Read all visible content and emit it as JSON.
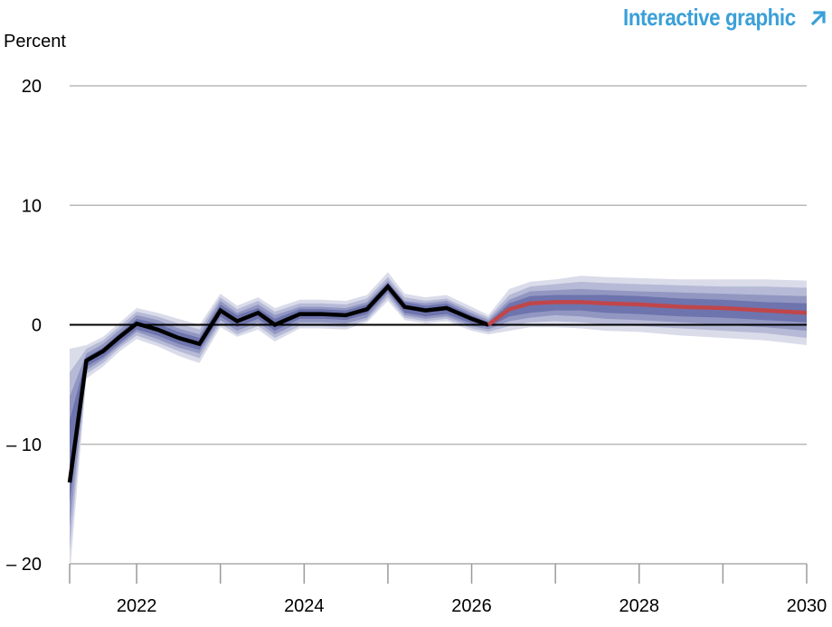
{
  "header": {
    "link_label": "Interactive graphic",
    "link_icon": "arrow-up-right-icon",
    "link_color": "#3aa0d8"
  },
  "chart_data": {
    "type": "line",
    "title": "",
    "xlabel": "",
    "ylabel": "Percent",
    "ylim": [
      -20,
      20
    ],
    "xlim": [
      2021.2,
      2030.0
    ],
    "yticks": [
      20,
      10,
      0,
      -10,
      -20
    ],
    "ytick_labels": [
      "20",
      "10",
      "0",
      "– 10",
      "– 20"
    ],
    "xticks": [
      2022,
      2024,
      2026,
      2028,
      2030
    ],
    "xtick_labels": [
      "2022",
      "2024",
      "2026",
      "2028",
      "2030"
    ],
    "grid": true,
    "zero_line": true,
    "legend": "none",
    "colors": {
      "history": "#000000",
      "forecast": "#c0464a",
      "bands": [
        "#dadcea",
        "#b6bad6",
        "#9297c2",
        "#6e74ad"
      ]
    },
    "series": [
      {
        "role": "history",
        "x": [
          2021.2,
          2021.4,
          2021.6,
          2021.8,
          2022.0,
          2022.25,
          2022.5,
          2022.75,
          2023.0,
          2023.2,
          2023.45,
          2023.65,
          2023.95,
          2024.2,
          2024.5,
          2024.75,
          2025.0,
          2025.2,
          2025.45,
          2025.7,
          2026.0,
          2026.2
        ],
        "y": [
          -13.2,
          -3.0,
          -2.2,
          -1.0,
          0.1,
          -0.4,
          -1.1,
          -1.6,
          1.2,
          0.3,
          1.0,
          0.0,
          0.9,
          0.9,
          0.8,
          1.3,
          3.2,
          1.5,
          1.2,
          1.4,
          0.5,
          0.0
        ]
      },
      {
        "role": "forecast",
        "x": [
          2026.2,
          2026.45,
          2026.7,
          2027.0,
          2027.3,
          2027.6,
          2028.0,
          2028.5,
          2029.0,
          2029.5,
          2030.0
        ],
        "y": [
          0.0,
          1.3,
          1.8,
          1.9,
          1.9,
          1.8,
          1.7,
          1.5,
          1.4,
          1.2,
          1.0
        ]
      }
    ],
    "bands": [
      {
        "x": [
          2021.2,
          2021.4,
          2021.6,
          2021.8,
          2022.0,
          2022.25,
          2022.5,
          2022.75,
          2023.0,
          2023.2,
          2023.45,
          2023.65,
          2023.95,
          2024.2,
          2024.5,
          2024.75,
          2025.0,
          2025.2,
          2025.45,
          2025.7,
          2026.0,
          2026.2,
          2026.45,
          2026.7,
          2027.0,
          2027.3,
          2027.6,
          2028.0,
          2028.5,
          2029.0,
          2029.5,
          2030.0
        ],
        "lo": [
          -21,
          -4.5,
          -3.5,
          -2.2,
          -1.2,
          -1.8,
          -2.6,
          -3.2,
          -0.2,
          -1.0,
          -0.4,
          -1.4,
          -0.3,
          -0.3,
          -0.4,
          0.2,
          2.0,
          0.4,
          0.1,
          0.3,
          -0.5,
          -0.8,
          -0.5,
          -0.2,
          -0.2,
          -0.3,
          -0.5,
          -0.6,
          -0.9,
          -1.1,
          -1.3,
          -1.7
        ],
        "hi": [
          -2.0,
          -1.7,
          -1.0,
          0.2,
          1.4,
          1.0,
          0.5,
          0.0,
          2.6,
          1.6,
          2.3,
          1.4,
          2.1,
          2.1,
          2.0,
          2.5,
          4.4,
          2.6,
          2.3,
          2.5,
          1.5,
          0.8,
          3.0,
          3.6,
          3.8,
          4.1,
          4.0,
          3.9,
          3.8,
          3.8,
          3.8,
          3.7
        ]
      },
      {
        "x": [
          2021.2,
          2021.4,
          2021.6,
          2021.8,
          2022.0,
          2022.25,
          2022.5,
          2022.75,
          2023.0,
          2023.2,
          2023.45,
          2023.65,
          2023.95,
          2024.2,
          2024.5,
          2024.75,
          2025.0,
          2025.2,
          2025.45,
          2025.7,
          2026.0,
          2026.2,
          2026.45,
          2026.7,
          2027.0,
          2027.3,
          2027.6,
          2028.0,
          2028.5,
          2029.0,
          2029.5,
          2030.0
        ],
        "lo": [
          -19,
          -4.1,
          -3.2,
          -1.9,
          -0.9,
          -1.5,
          -2.2,
          -2.8,
          0.1,
          -0.8,
          -0.1,
          -1.1,
          -0.1,
          -0.1,
          -0.2,
          0.4,
          2.3,
          0.6,
          0.3,
          0.5,
          -0.3,
          -0.6,
          -0.1,
          0.2,
          0.3,
          0.2,
          0.0,
          -0.1,
          -0.3,
          -0.5,
          -0.7,
          -1.1
        ],
        "hi": [
          -4.0,
          -2.0,
          -1.3,
          -0.1,
          1.1,
          0.7,
          0.1,
          -0.4,
          2.3,
          1.3,
          2.0,
          1.1,
          1.8,
          1.8,
          1.7,
          2.2,
          4.0,
          2.3,
          2.0,
          2.2,
          1.2,
          0.6,
          2.5,
          3.2,
          3.4,
          3.6,
          3.5,
          3.4,
          3.3,
          3.2,
          3.2,
          3.1
        ]
      },
      {
        "x": [
          2021.2,
          2021.4,
          2021.6,
          2021.8,
          2022.0,
          2022.25,
          2022.5,
          2022.75,
          2023.0,
          2023.2,
          2023.45,
          2023.65,
          2023.95,
          2024.2,
          2024.5,
          2024.75,
          2025.0,
          2025.2,
          2025.45,
          2025.7,
          2026.0,
          2026.2,
          2026.45,
          2026.7,
          2027.0,
          2027.3,
          2027.6,
          2028.0,
          2028.5,
          2029.0,
          2029.5,
          2030.0
        ],
        "lo": [
          -17,
          -3.8,
          -2.9,
          -1.7,
          -0.6,
          -1.2,
          -1.9,
          -2.4,
          0.4,
          -0.5,
          0.2,
          -0.8,
          0.2,
          0.2,
          0.1,
          0.6,
          2.6,
          0.8,
          0.5,
          0.7,
          -0.1,
          -0.4,
          0.3,
          0.6,
          0.8,
          0.7,
          0.5,
          0.4,
          0.2,
          0.0,
          -0.2,
          -0.5
        ],
        "hi": [
          -6.0,
          -2.4,
          -1.6,
          -0.4,
          0.8,
          0.4,
          -0.3,
          -0.8,
          2.0,
          1.0,
          1.7,
          0.8,
          1.5,
          1.5,
          1.4,
          1.9,
          3.7,
          2.0,
          1.8,
          2.0,
          1.0,
          0.4,
          2.1,
          2.8,
          2.9,
          3.0,
          2.9,
          2.8,
          2.7,
          2.6,
          2.5,
          2.4
        ]
      },
      {
        "x": [
          2021.2,
          2021.4,
          2021.6,
          2021.8,
          2022.0,
          2022.25,
          2022.5,
          2022.75,
          2023.0,
          2023.2,
          2023.45,
          2023.65,
          2023.95,
          2024.2,
          2024.5,
          2024.75,
          2025.0,
          2025.2,
          2025.45,
          2025.7,
          2026.0,
          2026.2,
          2026.45,
          2026.7,
          2027.0,
          2027.3,
          2027.6,
          2028.0,
          2028.5,
          2029.0,
          2029.5,
          2030.0
        ],
        "lo": [
          -15,
          -3.5,
          -2.7,
          -1.5,
          -0.4,
          -0.9,
          -1.6,
          -2.1,
          0.7,
          -0.2,
          0.5,
          -0.5,
          0.5,
          0.5,
          0.4,
          0.9,
          2.8,
          1.0,
          0.7,
          0.9,
          0.1,
          -0.2,
          0.7,
          1.0,
          1.2,
          1.2,
          1.0,
          0.9,
          0.7,
          0.6,
          0.4,
          0.2
        ],
        "hi": [
          -8.0,
          -2.7,
          -1.9,
          -0.7,
          0.5,
          0.1,
          -0.6,
          -1.1,
          1.7,
          0.8,
          1.4,
          0.5,
          1.3,
          1.3,
          1.2,
          1.7,
          3.5,
          1.9,
          1.6,
          1.8,
          0.8,
          0.2,
          1.8,
          2.4,
          2.5,
          2.5,
          2.5,
          2.4,
          2.2,
          2.1,
          1.9,
          1.8
        ]
      }
    ]
  }
}
